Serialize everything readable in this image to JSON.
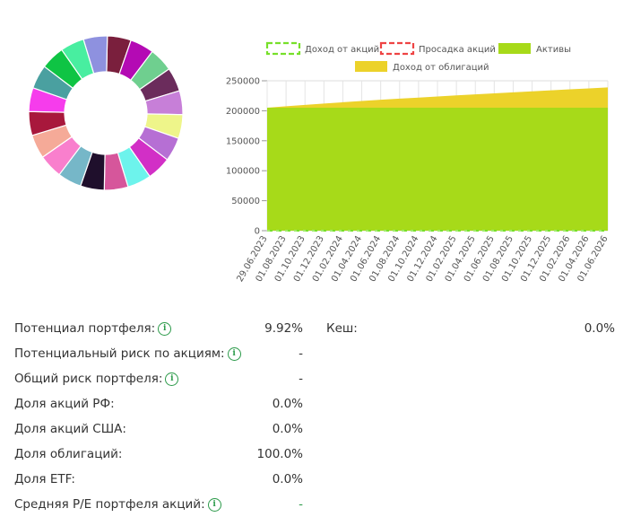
{
  "chart_data": [
    {
      "type": "pie",
      "variant": "donut",
      "title": "",
      "slices": [
        {
          "label": "",
          "value": 1,
          "color": "#7a1f3d"
        },
        {
          "label": "",
          "value": 1,
          "color": "#b40ab4"
        },
        {
          "label": "",
          "value": 1,
          "color": "#6fcf8f"
        },
        {
          "label": "",
          "value": 1,
          "color": "#6b2c5c"
        },
        {
          "label": "",
          "value": 1,
          "color": "#c77fd8"
        },
        {
          "label": "",
          "value": 1,
          "color": "#eef58a"
        },
        {
          "label": "",
          "value": 1,
          "color": "#b66fd4"
        },
        {
          "label": "",
          "value": 1,
          "color": "#d22fc6"
        },
        {
          "label": "",
          "value": 1,
          "color": "#6df3ec"
        },
        {
          "label": "",
          "value": 1,
          "color": "#d6569b"
        },
        {
          "label": "",
          "value": 1,
          "color": "#1f0f2c"
        },
        {
          "label": "",
          "value": 1,
          "color": "#76b7c8"
        },
        {
          "label": "",
          "value": 1,
          "color": "#f97fcd"
        },
        {
          "label": "",
          "value": 1,
          "color": "#f5aa98"
        },
        {
          "label": "",
          "value": 1,
          "color": "#a8183c"
        },
        {
          "label": "",
          "value": 1,
          "color": "#f63cec"
        },
        {
          "label": "",
          "value": 1,
          "color": "#4aa0a0"
        },
        {
          "label": "",
          "value": 1,
          "color": "#0fc444"
        },
        {
          "label": "",
          "value": 1,
          "color": "#48eea0"
        },
        {
          "label": "",
          "value": 1,
          "color": "#8e91df"
        }
      ]
    },
    {
      "type": "area",
      "title": "",
      "xlabel": "",
      "ylabel": "",
      "ylim": [
        0,
        250000
      ],
      "yticks": [
        0,
        50000,
        100000,
        150000,
        200000,
        250000
      ],
      "x": [
        "29.06.2023",
        "01.08.2023",
        "01.10.2023",
        "01.12.2023",
        "01.02.2024",
        "01.04.2024",
        "01.06.2024",
        "01.08.2024",
        "01.10.2024",
        "01.12.2024",
        "01.02.2025",
        "01.04.2025",
        "01.06.2025",
        "01.08.2025",
        "01.10.2025",
        "01.12.2025",
        "01.02.2026",
        "01.04.2026",
        "01.06.2026"
      ],
      "legend": [
        {
          "label": "Доход от акций",
          "style": "dashed",
          "color": "#77e02a"
        },
        {
          "label": "Просадка акций",
          "style": "dashed",
          "color": "#ee4444"
        },
        {
          "label": "Активы",
          "style": "solid",
          "color": "#a7da19"
        },
        {
          "label": "Доход от облигаций",
          "style": "solid",
          "color": "#ecd22a"
        }
      ],
      "series": [
        {
          "name": "Активы",
          "color": "#a7da19",
          "values": [
            205000,
            205000,
            205000,
            205000,
            205000,
            205000,
            205000,
            205000,
            205000,
            205000,
            205000,
            205000,
            205000,
            205000,
            205000,
            205000,
            205000,
            205000,
            205000
          ]
        },
        {
          "name": "Доход от облигаций",
          "color": "#ecd22a",
          "values": [
            0,
            2500,
            4800,
            7000,
            9200,
            11300,
            13300,
            15200,
            17000,
            18800,
            20600,
            22300,
            24000,
            25700,
            27400,
            29100,
            30700,
            32300,
            34000
          ]
        },
        {
          "name": "Доход от акций",
          "color": "#77e02a",
          "values": [
            0,
            0,
            0,
            0,
            0,
            0,
            0,
            0,
            0,
            0,
            0,
            0,
            0,
            0,
            0,
            0,
            0,
            0,
            0
          ]
        },
        {
          "name": "Просадка акций",
          "color": "#ee4444",
          "values": [
            0,
            0,
            0,
            0,
            0,
            0,
            0,
            0,
            0,
            0,
            0,
            0,
            0,
            0,
            0,
            0,
            0,
            0,
            0
          ]
        }
      ]
    }
  ],
  "stats": {
    "rows": [
      {
        "label": "Потенциал портфеля:",
        "info": "i",
        "value": "9.92%",
        "value_color": "#333333"
      },
      {
        "label": "Потенциальный риск по акциям:",
        "info": "i",
        "value": "-",
        "value_color": "#333333"
      },
      {
        "label": "Общий риск портфеля:",
        "info": "i",
        "value": "-",
        "value_color": "#333333"
      },
      {
        "label": "Доля акций РФ:",
        "info": "",
        "value": "0.0%",
        "value_color": "#333333"
      },
      {
        "label": "Доля акций США:",
        "info": "",
        "value": "0.0%",
        "value_color": "#333333"
      },
      {
        "label": "Доля облигаций:",
        "info": "",
        "value": "100.0%",
        "value_color": "#333333"
      },
      {
        "label": "Доля ETF:",
        "info": "",
        "value": "0.0%",
        "value_color": "#333333"
      },
      {
        "label": "Средняя P/E портфеля акций:",
        "info": "i",
        "value": "-",
        "value_color": "#2b9a49"
      }
    ],
    "cash": {
      "label": "Кеш:",
      "value": "0.0%"
    }
  }
}
